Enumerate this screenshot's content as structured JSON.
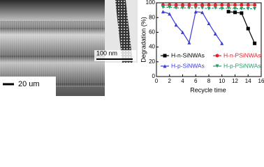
{
  "images": {
    "sem_scale_label": "20 um",
    "tem_scale_label": "100 nm"
  },
  "chart_data": {
    "type": "line",
    "xlabel": "Recycle time",
    "ylabel": "Degradation (%)",
    "x": [
      1,
      2,
      3,
      4,
      5,
      6,
      7,
      8,
      9,
      10,
      11,
      12,
      13,
      14,
      15
    ],
    "series": [
      {
        "name": "H-n-SiNWAs",
        "color": "#000000",
        "marker": "square",
        "values": [
          null,
          null,
          null,
          null,
          null,
          null,
          null,
          null,
          null,
          null,
          88,
          87,
          86,
          65,
          45
        ]
      },
      {
        "name": "H-n-PSiNWAs",
        "color": "#e8202a",
        "marker": "circle",
        "values": [
          97,
          97,
          97,
          97,
          97,
          97,
          97,
          97,
          97,
          97,
          97,
          97,
          97,
          97,
          97
        ]
      },
      {
        "name": "H-p-SiNWAs",
        "color": "#3a3ad8",
        "marker": "triangle",
        "values": [
          88,
          85,
          70,
          60,
          46,
          88,
          87,
          72,
          58,
          45,
          null,
          null,
          null,
          null,
          null
        ]
      },
      {
        "name": "H-p-PSiNWAs",
        "color": "#2a9a6a",
        "marker": "triangle-down",
        "values": [
          94,
          94,
          93,
          93,
          93,
          93,
          93,
          92,
          93,
          92,
          93,
          92,
          92,
          92,
          92
        ]
      }
    ],
    "xlim": [
      0,
      16
    ],
    "xticks": [
      0,
      2,
      4,
      6,
      8,
      10,
      12,
      14,
      16
    ],
    "ylim": [
      0,
      100
    ],
    "yticks": [
      0,
      20,
      40,
      60,
      80,
      100
    ],
    "legend": "lower"
  }
}
